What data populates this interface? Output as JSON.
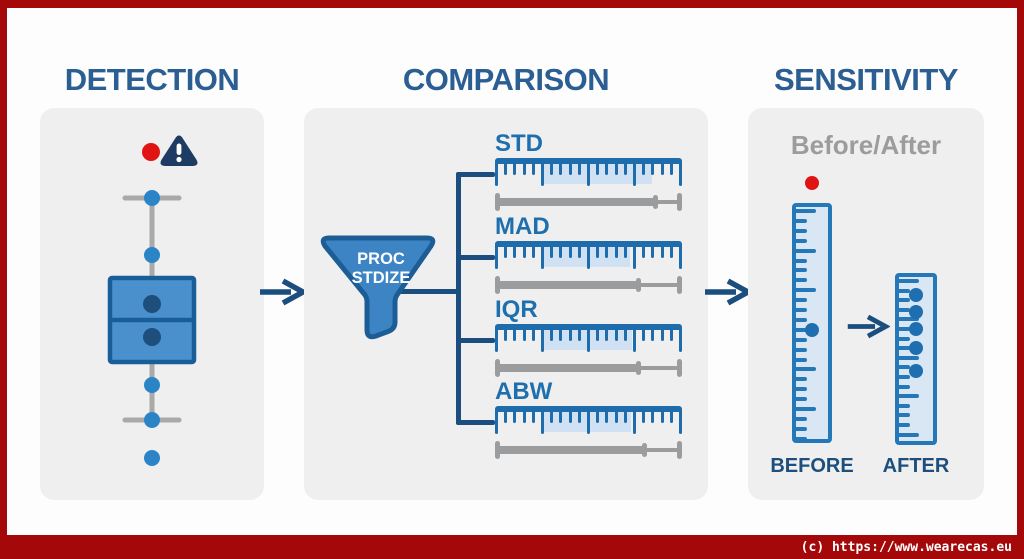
{
  "colors": {
    "frame_red": "#a50808",
    "accent_red": "#e11414",
    "title_blue": "#2b5e92",
    "label_blue": "#1e6fae",
    "ruler_blue": "#1e6cab",
    "navy": "#1b4d7e",
    "box_fill_blue": "#4a90cc",
    "highlight_light_blue": "#cfe1f2",
    "vruler_fill": "#d9e6f4",
    "gray_bar": "#9b9c9e",
    "card_bg": "#efeff0",
    "subtitle_gray": "#9c9c9c"
  },
  "icons": {
    "warning_icon": "triangle-exclamation",
    "funnel_icon": "funnel",
    "arrow_icon": "right-arrow",
    "outlier_dot": "red-circle"
  },
  "sections": [
    {
      "id": "detection",
      "title": "DETECTION"
    },
    {
      "id": "comparison",
      "title": "COMPARISON"
    },
    {
      "id": "sensitivity",
      "title": "SENSITIVITY"
    }
  ],
  "comparison": {
    "funnel_label_line1": "PROC",
    "funnel_label_line2": "STDIZE",
    "rulers": [
      {
        "label": "STD",
        "highlight_start": 26,
        "highlight_end": 84,
        "gray_split": 85
      },
      {
        "label": "MAD",
        "highlight_start": 25,
        "highlight_end": 72,
        "gray_split": 76
      },
      {
        "label": "IQR",
        "highlight_start": 25,
        "highlight_end": 73,
        "gray_split": 76
      },
      {
        "label": "ABW",
        "highlight_start": 26,
        "highlight_end": 73,
        "gray_split": 79
      }
    ]
  },
  "sensitivity": {
    "subtitle": "Before/After",
    "before_label": "BEFORE",
    "after_label": "AFTER",
    "before_dots": [
      53
    ],
    "after_dots": [
      11,
      21.5,
      32,
      43,
      57.5
    ]
  },
  "footer": {
    "copyright": "(c) https://www.wearecas.eu"
  }
}
